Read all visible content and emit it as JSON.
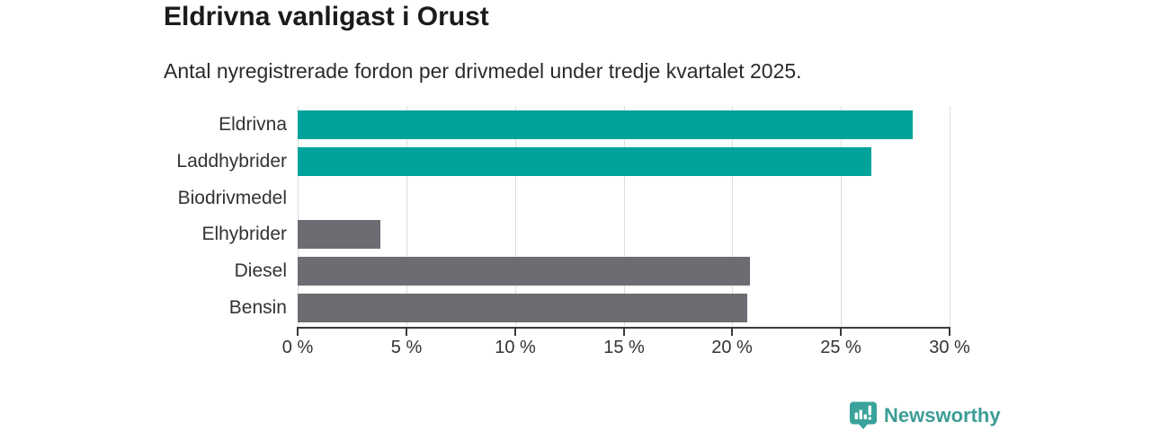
{
  "header": {
    "title": "Eldrivna vanligast i Orust",
    "subtitle": "Antal nyregistrerade fordon per drivmedel under tredje kvartalet 2025."
  },
  "chart_data": {
    "type": "bar",
    "orientation": "horizontal",
    "title": "Eldrivna vanligast i Orust",
    "subtitle": "Antal nyregistrerade fordon per drivmedel under tredje kvartalet 2025.",
    "categories": [
      "Eldrivna",
      "Laddhybrider",
      "Biodrivmedel",
      "Elhybrider",
      "Diesel",
      "Bensin"
    ],
    "values": [
      28.3,
      26.4,
      0,
      3.8,
      20.8,
      20.7
    ],
    "unit": "%",
    "bar_colors": [
      "#00a39b",
      "#00a39b",
      "#6c6c72",
      "#6c6c72",
      "#6c6c72",
      "#6c6c72"
    ],
    "xlim": [
      0,
      30
    ],
    "x_ticks": [
      0,
      5,
      10,
      15,
      20,
      25,
      30
    ],
    "x_tick_labels": [
      "0 %",
      "5 %",
      "10 %",
      "15 %",
      "20 %",
      "25 %",
      "30 %"
    ],
    "xlabel": "",
    "ylabel": "",
    "grid": true,
    "legend": false
  },
  "colors": {
    "accent_teal": "#00a39b",
    "neutral_gray": "#6c6c72",
    "grid": "#dddddd",
    "axis": "#3a3a3a",
    "text": "#333333",
    "brand_teal": "#3c9d96"
  },
  "branding": {
    "logo_text": "Newsworthy",
    "logo_icon": "bar-chart-pin-icon"
  }
}
